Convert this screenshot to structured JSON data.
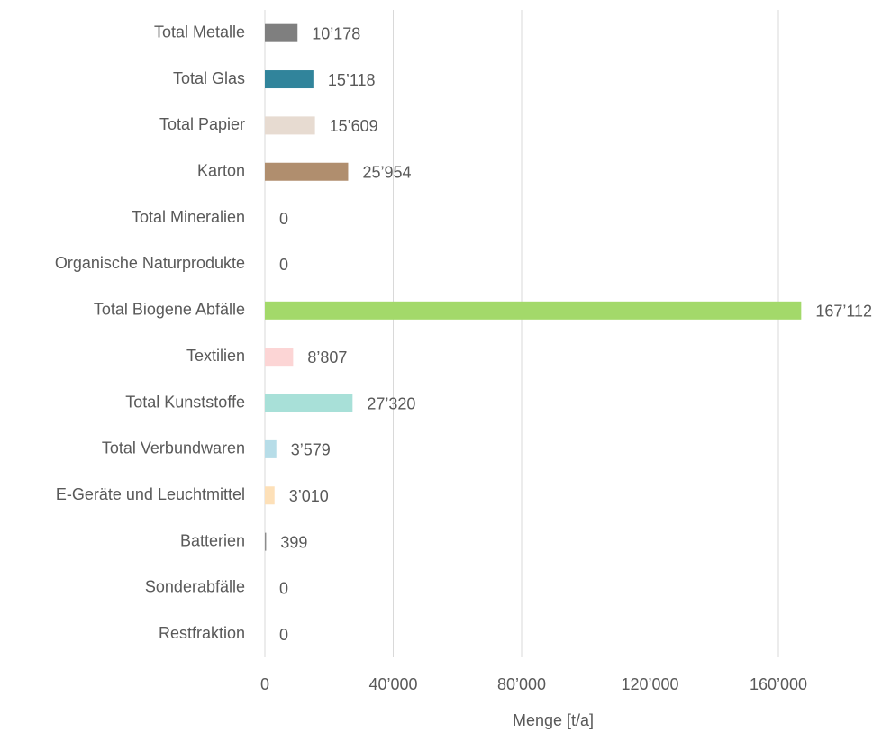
{
  "chart_data": {
    "type": "bar",
    "orientation": "horizontal",
    "x_label": "Menge [t/a]",
    "categories": [
      "Total Metalle",
      "Total Glas",
      "Total Papier",
      "Karton",
      "Total Mineralien",
      "Organische Naturprodukte",
      "Total Biogene Abfälle",
      "Textilien",
      "Total Kunststoffe",
      "Total Verbundwaren",
      "E-Geräte und Leuchtmittel",
      "Batterien",
      "Sonderabfälle",
      "Restfraktion"
    ],
    "values": [
      10178,
      15118,
      15609,
      25954,
      0,
      0,
      167112,
      8807,
      27320,
      3579,
      3010,
      399,
      0,
      0
    ],
    "value_labels": [
      "10’178",
      "15’118",
      "15’609",
      "25’954",
      "0",
      "0",
      "167’112",
      "8’807",
      "27’320",
      "3’579",
      "3’010",
      "399",
      "0",
      "0"
    ],
    "colors": [
      "#7f7f7f",
      "#31849b",
      "#e7dbd1",
      "#b08e6e",
      "#bfbfbf",
      "#bfbfbf",
      "#a3d96a",
      "#fcd5d5",
      "#a8e0d8",
      "#b7dde8",
      "#fde0b8",
      "#8c8c8c",
      "#bfbfbf",
      "#bfbfbf"
    ],
    "xlim": [
      0,
      180000
    ],
    "xticks": [
      0,
      {
        "value": 40000,
        "label": "40’000"
      },
      {
        "value": 80000,
        "label": "80’000"
      },
      {
        "value": 120000,
        "label": "120’000"
      },
      {
        "value": 160000,
        "label": "160’000"
      }
    ],
    "grid": true
  }
}
